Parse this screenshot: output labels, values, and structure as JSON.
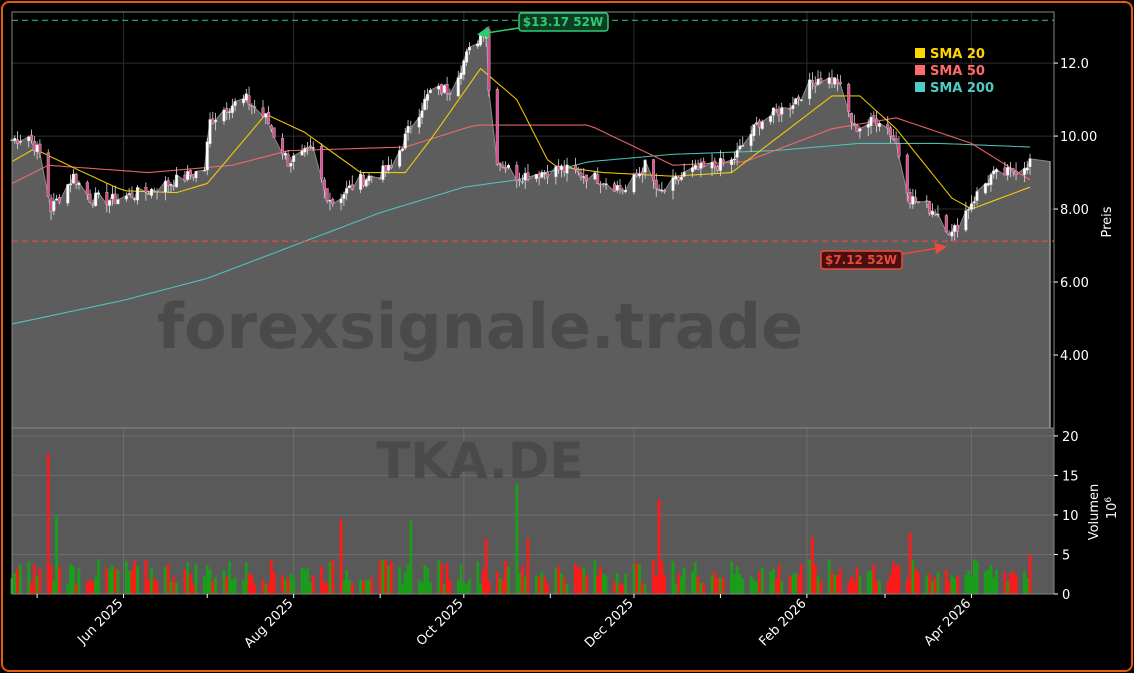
{
  "chart_data": {
    "type": "candlestick",
    "ticker": "TKA.DE",
    "watermark": "forexsignale.trade",
    "ylabel": "Preis",
    "ylim": [
      2.0,
      13.4
    ],
    "yticks": [
      "4.00",
      "6.00",
      "8.00",
      "10.00",
      "12.0"
    ],
    "yticks_values": [
      4,
      6,
      8,
      10,
      12
    ],
    "volume_ylabel": "Volumen",
    "volume_multiplier": "10",
    "volume_exponent": "6",
    "volume_ylim": [
      0,
      21
    ],
    "volume_ticks": [
      "0",
      "5",
      "10",
      "15",
      "20"
    ],
    "volume_ticks_values": [
      0,
      5,
      10,
      15,
      20
    ],
    "x_ticks": [
      "Jun 2025",
      "Aug 2025",
      "Oct 2025",
      "Dec 2025",
      "Feb 2026",
      "Apr 2026"
    ],
    "x_ticks_dates": [
      "2025-06-01",
      "2025-08-01",
      "2025-10-01",
      "2025-12-01",
      "2026-02-01",
      "2026-04-01"
    ],
    "date_range": [
      "2025-04-22",
      "2026-04-22"
    ],
    "legend": [
      {
        "name": "SMA 20",
        "color": "#ffd700"
      },
      {
        "name": "SMA 50",
        "color": "#ff6b6b"
      },
      {
        "name": "SMA 200",
        "color": "#4ecdc4"
      }
    ],
    "legend_position": "top-right",
    "annotations": {
      "high": {
        "label": "$13.17 52W",
        "value": 13.17,
        "date": "2025-10-09",
        "color": "#2ecc71"
      },
      "low": {
        "label": "$7.12 52W",
        "value": 7.12,
        "date": "2026-03-25",
        "color": "#e74c3c"
      }
    },
    "last_close": 9.3,
    "close_keypoints": [
      [
        "2025-04-22",
        9.9
      ],
      [
        "2025-04-28",
        10.0
      ],
      [
        "2025-05-02",
        9.5
      ],
      [
        "2025-05-06",
        8.0
      ],
      [
        "2025-05-14",
        8.9
      ],
      [
        "2025-05-20",
        8.3
      ],
      [
        "2025-05-28",
        8.25
      ],
      [
        "2025-06-10",
        8.5
      ],
      [
        "2025-06-24",
        8.9
      ],
      [
        "2025-06-30",
        9.1
      ],
      [
        "2025-07-02",
        10.4
      ],
      [
        "2025-07-08",
        10.8
      ],
      [
        "2025-07-15",
        11.0
      ],
      [
        "2025-07-22",
        10.5
      ],
      [
        "2025-07-30",
        9.3
      ],
      [
        "2025-08-08",
        9.6
      ],
      [
        "2025-08-12",
        8.5
      ],
      [
        "2025-08-15",
        8.2
      ],
      [
        "2025-08-25",
        8.8
      ],
      [
        "2025-09-05",
        9.1
      ],
      [
        "2025-09-12",
        10.3
      ],
      [
        "2025-09-19",
        11.2
      ],
      [
        "2025-09-26",
        11.3
      ],
      [
        "2025-10-02",
        12.2
      ],
      [
        "2025-10-09",
        13.0
      ],
      [
        "2025-10-11",
        9.5
      ],
      [
        "2025-10-20",
        8.9
      ],
      [
        "2025-11-05",
        9.1
      ],
      [
        "2025-11-20",
        8.8
      ],
      [
        "2025-11-28",
        8.5
      ],
      [
        "2025-12-05",
        9.2
      ],
      [
        "2025-12-10",
        8.4
      ],
      [
        "2025-12-20",
        9.0
      ],
      [
        "2026-01-05",
        9.3
      ],
      [
        "2026-01-15",
        10.4
      ],
      [
        "2026-01-25",
        10.8
      ],
      [
        "2026-02-05",
        11.6
      ],
      [
        "2026-02-12",
        11.5
      ],
      [
        "2026-02-18",
        10.2
      ],
      [
        "2026-02-28",
        10.5
      ],
      [
        "2026-03-05",
        9.8
      ],
      [
        "2026-03-10",
        8.3
      ],
      [
        "2026-03-20",
        7.9
      ],
      [
        "2026-03-25",
        7.3
      ],
      [
        "2026-04-01",
        8.2
      ],
      [
        "2026-04-08",
        8.9
      ],
      [
        "2026-04-15",
        9.0
      ],
      [
        "2026-04-22",
        9.3
      ]
    ],
    "sma20_keypoints": [
      [
        "2025-04-22",
        9.3
      ],
      [
        "2025-04-30",
        9.65
      ],
      [
        "2025-05-15",
        9.1
      ],
      [
        "2025-06-01",
        8.5
      ],
      [
        "2025-06-20",
        8.45
      ],
      [
        "2025-07-01",
        8.7
      ],
      [
        "2025-07-22",
        10.6
      ],
      [
        "2025-08-05",
        10.1
      ],
      [
        "2025-08-25",
        9.0
      ],
      [
        "2025-09-10",
        9.0
      ],
      [
        "2025-09-20",
        10.0
      ],
      [
        "2025-10-07",
        11.85
      ],
      [
        "2025-10-20",
        11.0
      ],
      [
        "2025-11-01",
        9.2
      ],
      [
        "2025-11-20",
        9.0
      ],
      [
        "2025-12-15",
        8.9
      ],
      [
        "2026-01-05",
        9.0
      ],
      [
        "2026-02-10",
        11.1
      ],
      [
        "2026-02-20",
        11.1
      ],
      [
        "2026-03-05",
        10.2
      ],
      [
        "2026-03-25",
        8.3
      ],
      [
        "2026-04-01",
        8.0
      ],
      [
        "2026-04-22",
        8.6
      ]
    ],
    "sma50_keypoints": [
      [
        "2025-04-22",
        8.7
      ],
      [
        "2025-05-05",
        9.2
      ],
      [
        "2025-06-10",
        9.0
      ],
      [
        "2025-07-10",
        9.2
      ],
      [
        "2025-07-30",
        9.6
      ],
      [
        "2025-09-10",
        9.7
      ],
      [
        "2025-10-05",
        10.3
      ],
      [
        "2025-11-15",
        10.3
      ],
      [
        "2025-12-15",
        9.2
      ],
      [
        "2026-01-10",
        9.3
      ],
      [
        "2026-02-10",
        10.2
      ],
      [
        "2026-03-05",
        10.5
      ],
      [
        "2026-04-01",
        9.8
      ],
      [
        "2026-04-22",
        8.8
      ]
    ],
    "sma200_keypoints": [
      [
        "2025-04-22",
        4.85
      ],
      [
        "2025-06-01",
        5.5
      ],
      [
        "2025-07-01",
        6.1
      ],
      [
        "2025-08-01",
        7.0
      ],
      [
        "2025-09-01",
        7.9
      ],
      [
        "2025-10-01",
        8.6
      ],
      [
        "2025-10-20",
        8.8
      ],
      [
        "2025-11-15",
        9.3
      ],
      [
        "2025-12-15",
        9.5
      ],
      [
        "2026-01-20",
        9.6
      ],
      [
        "2026-02-20",
        9.8
      ],
      [
        "2026-03-20",
        9.8
      ],
      [
        "2026-04-22",
        9.7
      ]
    ],
    "volume_spikes": [
      [
        "2025-05-05",
        17.8,
        "red"
      ],
      [
        "2025-05-08",
        10.0,
        "green"
      ],
      [
        "2025-05-10",
        10.0,
        "green"
      ],
      [
        "2025-08-18",
        9.5,
        "red"
      ],
      [
        "2025-09-12",
        9.3,
        "green"
      ],
      [
        "2025-10-09",
        7.0,
        "red"
      ],
      [
        "2025-10-20",
        14.0,
        "green"
      ],
      [
        "2025-10-24",
        7.0,
        "red"
      ],
      [
        "2025-12-10",
        12.0,
        "red"
      ],
      [
        "2026-02-03",
        7.2,
        "red"
      ],
      [
        "2026-03-10",
        7.8,
        "red"
      ],
      [
        "2026-04-22",
        5.0,
        "red"
      ]
    ]
  }
}
